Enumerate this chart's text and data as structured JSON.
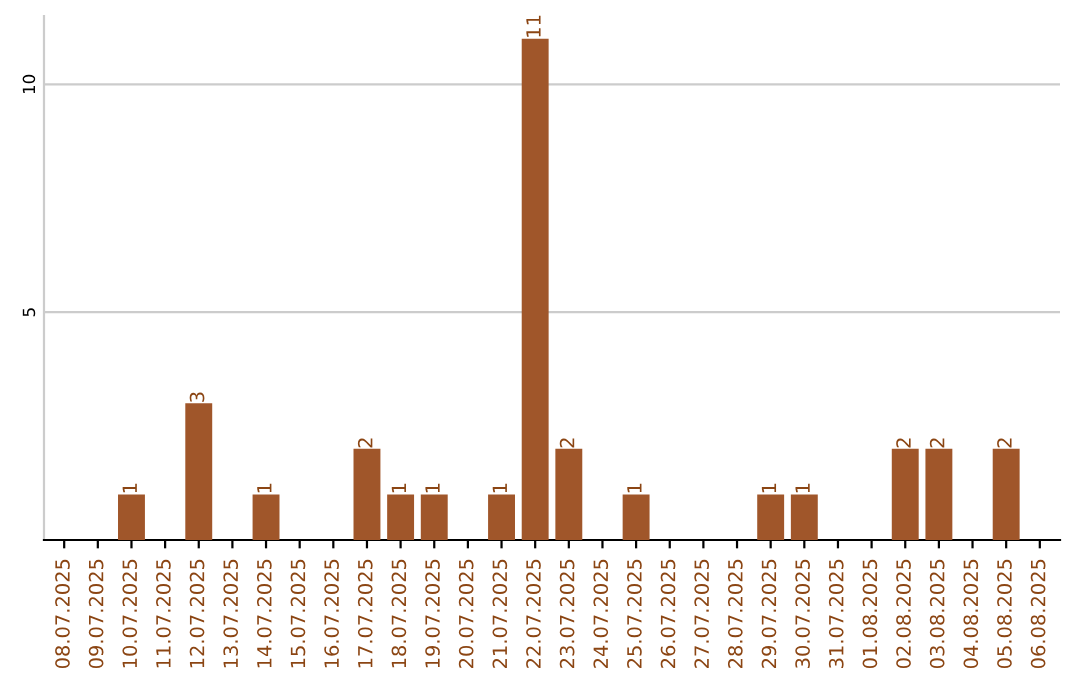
{
  "chart_data": {
    "type": "bar",
    "categories": [
      "08.07.2025",
      "09.07.2025",
      "10.07.2025",
      "11.07.2025",
      "12.07.2025",
      "13.07.2025",
      "14.07.2025",
      "15.07.2025",
      "16.07.2025",
      "17.07.2025",
      "18.07.2025",
      "19.07.2025",
      "20.07.2025",
      "21.07.2025",
      "22.07.2025",
      "23.07.2025",
      "24.07.2025",
      "25.07.2025",
      "26.07.2025",
      "27.07.2025",
      "28.07.2025",
      "29.07.2025",
      "30.07.2025",
      "31.07.2025",
      "01.08.2025",
      "02.08.2025",
      "03.08.2025",
      "04.08.2025",
      "05.08.2025",
      "06.08.2025"
    ],
    "values": [
      0,
      0,
      1,
      0,
      3,
      0,
      1,
      0,
      0,
      2,
      1,
      1,
      0,
      1,
      11,
      2,
      0,
      1,
      0,
      0,
      0,
      1,
      1,
      0,
      0,
      2,
      2,
      0,
      2,
      0
    ],
    "value_labels": [
      null,
      null,
      "1",
      null,
      "3",
      null,
      "1",
      null,
      null,
      "2",
      "1",
      "1",
      null,
      "1",
      "11",
      "2",
      null,
      "1",
      null,
      null,
      null,
      "1",
      "1",
      null,
      null,
      "2",
      "2",
      null,
      "2",
      null
    ],
    "color": "#a0562a",
    "ylim": [
      0,
      11.5
    ],
    "yticks": [
      5,
      10
    ],
    "grid": "y"
  }
}
